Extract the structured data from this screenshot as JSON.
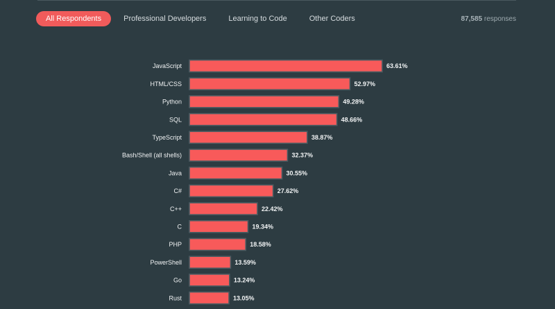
{
  "tabs": [
    {
      "label": "All Respondents",
      "active": true
    },
    {
      "label": "Professional Developers",
      "active": false
    },
    {
      "label": "Learning to Code",
      "active": false
    },
    {
      "label": "Other Coders",
      "active": false
    }
  ],
  "responses": {
    "count": "87,585",
    "suffix": "responses"
  },
  "colors": {
    "background": "#2d3c42",
    "bar": "#f85a5a",
    "active_tab": "#f15b5b"
  },
  "chart_data": {
    "type": "bar",
    "orientation": "horizontal",
    "categories": [
      "JavaScript",
      "HTML/CSS",
      "Python",
      "SQL",
      "TypeScript",
      "Bash/Shell (all shells)",
      "Java",
      "C#",
      "C++",
      "C",
      "PHP",
      "PowerShell",
      "Go",
      "Rust"
    ],
    "values": [
      63.61,
      52.97,
      49.28,
      48.66,
      38.87,
      32.37,
      30.55,
      27.62,
      22.42,
      19.34,
      18.58,
      13.59,
      13.24,
      13.05
    ],
    "value_labels": [
      "63.61%",
      "52.97%",
      "49.28%",
      "48.66%",
      "38.87%",
      "32.37%",
      "30.55%",
      "27.62%",
      "22.42%",
      "19.34%",
      "18.58%",
      "13.59%",
      "13.24%",
      "13.05%"
    ],
    "unit": "%",
    "grid": false,
    "legend": "none"
  }
}
